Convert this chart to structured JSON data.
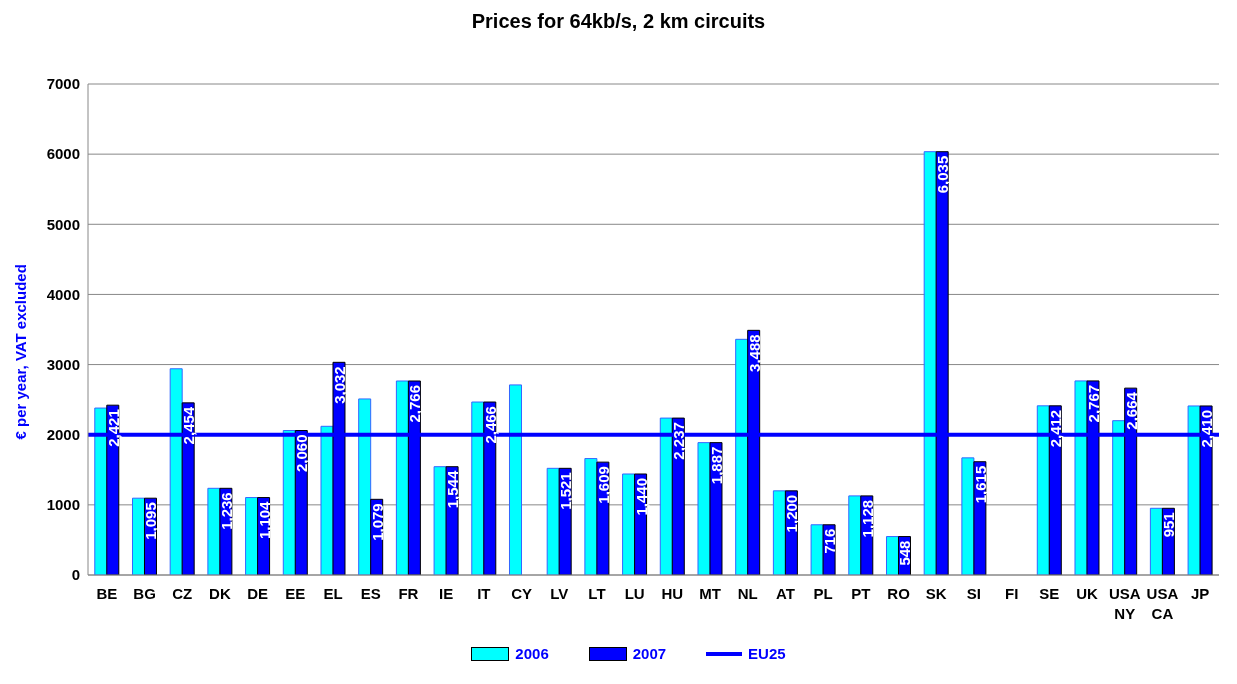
{
  "chart_data": {
    "type": "bar",
    "title": "Prices for 64kb/s, 2 km circuits",
    "ylabel": "€ per year, VAT excluded",
    "categories": [
      "BE",
      "BG",
      "CZ",
      "DK",
      "DE",
      "EE",
      "EL",
      "ES",
      "FR",
      "IE",
      "IT",
      "CY",
      "LV",
      "LT",
      "LU",
      "HU",
      "MT",
      "NL",
      "AT",
      "PL",
      "PT",
      "RO",
      "SK",
      "SI",
      "FI",
      "SE",
      "UK",
      "USA NY",
      "USA CA",
      "JP"
    ],
    "series": [
      {
        "name": "2006",
        "color": "#00ffff",
        "values": [
          2380,
          1095,
          2940,
          1236,
          1104,
          2060,
          2120,
          2510,
          2766,
          1544,
          2466,
          2710,
          1521,
          1660,
          1440,
          2237,
          1887,
          3360,
          1200,
          716,
          1128,
          548,
          6035,
          1670,
          null,
          2412,
          2767,
          2200,
          951,
          2410
        ]
      },
      {
        "name": "2007",
        "color": "#0000ff",
        "values": [
          2421,
          1095,
          2454,
          1236,
          1104,
          2060,
          3032,
          1079,
          2766,
          1544,
          2466,
          null,
          1521,
          1609,
          1440,
          2237,
          1887,
          3488,
          1200,
          716,
          1128,
          548,
          6035,
          1615,
          null,
          2412,
          2767,
          2664,
          951,
          2410
        ],
        "value_labels": [
          "2,421",
          "1,095",
          "2,454",
          "1,236",
          "1,104",
          "2,060",
          "3,032",
          "1,079",
          "2,766",
          "1,544",
          "2,466",
          null,
          "1,521",
          "1,609",
          "1,440",
          "2,237",
          "1,887",
          "3,488",
          "1,200",
          "716",
          "1,128",
          "548",
          "6,035",
          "1,615",
          null,
          "2,412",
          "2,767",
          "2,664",
          "951",
          "2,410"
        ]
      }
    ],
    "ylim": [
      0,
      7000
    ],
    "yticks": [
      0,
      1000,
      2000,
      3000,
      4000,
      5000,
      6000,
      7000
    ],
    "grid": "y",
    "legend": "bottom",
    "ref_lines": [
      {
        "axis": "y",
        "value": 2000,
        "label": "EU25",
        "color": "#0000ff"
      }
    ]
  }
}
